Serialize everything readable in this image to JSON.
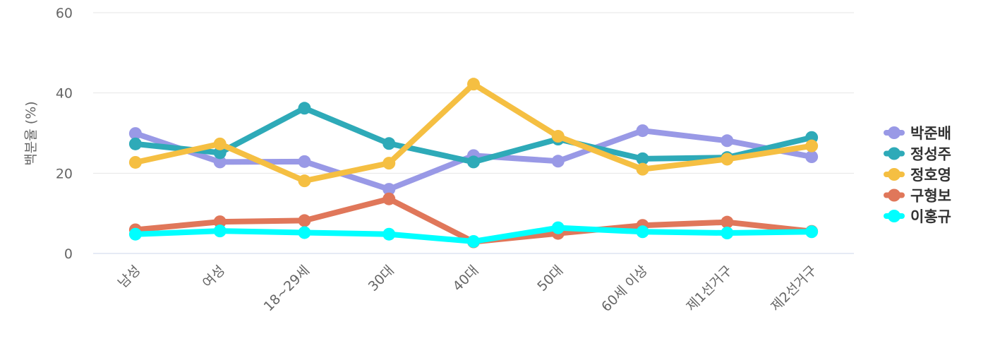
{
  "chart_data": {
    "type": "line",
    "title": "",
    "xlabel": "",
    "ylabel": "백분율 (%)",
    "ylim": [
      0,
      60
    ],
    "yticks": [
      0,
      20,
      40,
      60
    ],
    "grid": true,
    "legend_position": "right",
    "categories": [
      "남성",
      "여성",
      "18~29세",
      "30대",
      "40대",
      "50대",
      "60세 이상",
      "제1선거구",
      "제2선거구"
    ],
    "series": [
      {
        "name": "박준배",
        "color": "#9999e6",
        "values": [
          29.9,
          22.8,
          22.9,
          16.0,
          24.4,
          23.0,
          30.6,
          28.1,
          24.1
        ]
      },
      {
        "name": "정성주",
        "color": "#2eaab8",
        "values": [
          27.3,
          25.1,
          36.2,
          27.4,
          22.8,
          28.5,
          23.6,
          23.9,
          28.9
        ]
      },
      {
        "name": "정호영",
        "color": "#f5bf42",
        "values": [
          22.7,
          27.3,
          18.1,
          22.5,
          42.2,
          29.2,
          21.0,
          23.5,
          26.8
        ]
      },
      {
        "name": "구형보",
        "color": "#e0775a",
        "values": [
          5.9,
          7.9,
          8.2,
          13.6,
          2.9,
          5.0,
          7.0,
          7.8,
          5.5
        ]
      },
      {
        "name": "이홍규",
        "color": "#00ffff",
        "values": [
          4.8,
          5.6,
          5.2,
          4.8,
          3.0,
          6.4,
          5.4,
          5.1,
          5.4
        ]
      }
    ]
  }
}
